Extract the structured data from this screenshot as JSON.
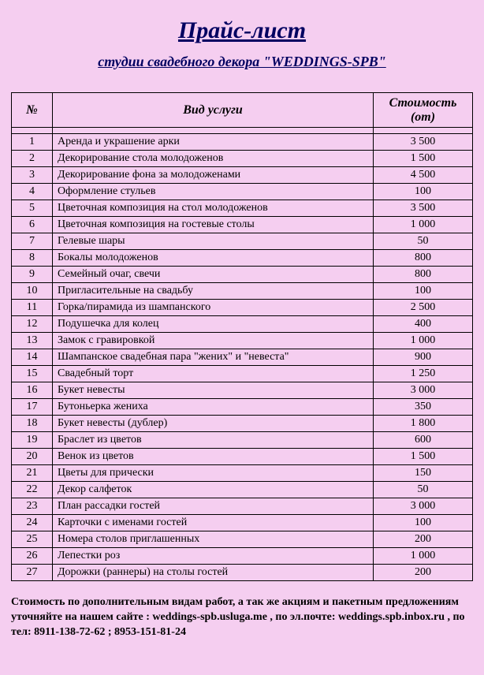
{
  "title": "Прайс-лист",
  "subtitle": "студии свадебного декора \"WEDDINGS-SPB\"",
  "table": {
    "columns": {
      "num": "№",
      "service": "Вид услуги",
      "cost": "Стоимость (от)"
    },
    "rows": [
      {
        "n": "1",
        "svc": "Аренда и украшение арки",
        "cost": "3 500"
      },
      {
        "n": "2",
        "svc": "Декорирование стола молодоженов",
        "cost": "1 500"
      },
      {
        "n": "3",
        "svc": "Декорирование фона за молодоженами",
        "cost": "4 500"
      },
      {
        "n": "4",
        "svc": "Оформление стульев",
        "cost": "100"
      },
      {
        "n": "5",
        "svc": "Цветочная композиция на стол молодоженов",
        "cost": "3 500"
      },
      {
        "n": "6",
        "svc": "Цветочная композиция на гостевые столы",
        "cost": "1 000"
      },
      {
        "n": "7",
        "svc": "Гелевые шары",
        "cost": "50"
      },
      {
        "n": "8",
        "svc": "Бокалы молодоженов",
        "cost": "800"
      },
      {
        "n": "9",
        "svc": "Семейный очаг, свечи",
        "cost": "800"
      },
      {
        "n": "10",
        "svc": "Пригласительные на свадьбу",
        "cost": "100"
      },
      {
        "n": "11",
        "svc": "Горка/пирамида из шампанского",
        "cost": "2 500"
      },
      {
        "n": "12",
        "svc": "Подушечка для колец",
        "cost": "400"
      },
      {
        "n": "13",
        "svc": "Замок с гравировкой",
        "cost": "1 000"
      },
      {
        "n": "14",
        "svc": "Шампанское свадебная пара \"жених\" и \"невеста\"",
        "cost": "900"
      },
      {
        "n": "15",
        "svc": "Свадебный торт",
        "cost": "1 250"
      },
      {
        "n": "16",
        "svc": "Букет невесты",
        "cost": "3 000"
      },
      {
        "n": "17",
        "svc": "Бутоньерка жениха",
        "cost": "350"
      },
      {
        "n": "18",
        "svc": "Букет невесты (дублер)",
        "cost": "1 800"
      },
      {
        "n": "19",
        "svc": "Браслет из цветов",
        "cost": "600"
      },
      {
        "n": "20",
        "svc": "Венок из цветов",
        "cost": "1 500"
      },
      {
        "n": "21",
        "svc": "Цветы для прически",
        "cost": "150"
      },
      {
        "n": "22",
        "svc": "Декор салфеток",
        "cost": "50"
      },
      {
        "n": "23",
        "svc": "План рассадки гостей",
        "cost": "3 000"
      },
      {
        "n": "24",
        "svc": "Карточки с именами гостей",
        "cost": "100"
      },
      {
        "n": "25",
        "svc": "Номера столов приглашенных",
        "cost": "200"
      },
      {
        "n": "26",
        "svc": "Лепестки роз",
        "cost": "1 000"
      },
      {
        "n": "27",
        "svc": "Дорожки (раннеры) на столы гостей",
        "cost": "200"
      }
    ]
  },
  "footer": "Стоимость по дополнительным видам работ, а так же акциям и пакетным предложениям уточняйте на нашем сайте : weddings-spb.usluga.me , по эл.почте: weddings.spb.inbox.ru , по тел: 8911-138-72-62 ; 8953-151-81-24"
}
